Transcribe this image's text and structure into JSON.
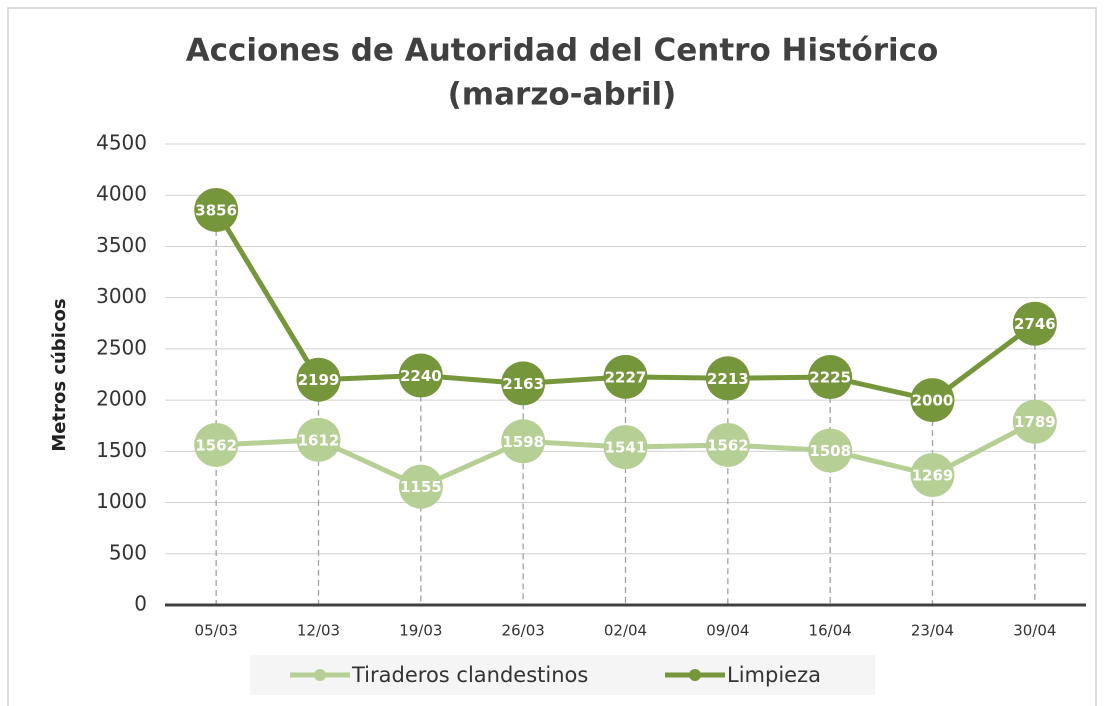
{
  "chart_data": {
    "type": "line",
    "title": "Acciones de Autoridad del Centro Histórico",
    "subtitle": "(marzo-abril)",
    "y_label": "Metros cúbicos",
    "categories": [
      "05/03",
      "12/03",
      "19/03",
      "26/03",
      "02/04",
      "09/04",
      "16/04",
      "23/04",
      "30/04"
    ],
    "series": [
      {
        "name": "Tiraderos clandestinos",
        "color": "#b5cf95",
        "values": [
          1562,
          1612,
          1155,
          1598,
          1541,
          1562,
          1508,
          1269,
          1789
        ]
      },
      {
        "name": "Limpieza",
        "color": "#76963c",
        "values": [
          3856,
          2199,
          2240,
          2163,
          2227,
          2213,
          2225,
          2000,
          2746
        ]
      }
    ],
    "ylim": [
      0,
      4500
    ],
    "yticks": [
      0,
      500,
      1000,
      1500,
      2000,
      2500,
      3000,
      3500,
      4000,
      4500
    ],
    "grid": true,
    "legend": "bottom"
  }
}
